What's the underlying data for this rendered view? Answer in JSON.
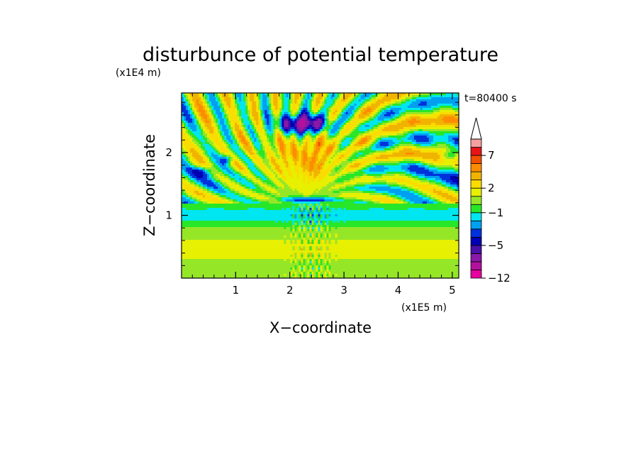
{
  "chart_data": {
    "type": "heatmap",
    "title": "disturbunce of potential temperature",
    "xlabel": "X−coordinate",
    "ylabel": "Z−coordinate",
    "x_scale_label": "(x1E5 m)",
    "y_scale_label": "(x1E4 m)",
    "time_label": "t=80400 s",
    "xlim": [
      0,
      5.12
    ],
    "ylim": [
      0,
      2.95
    ],
    "x_ticks": [
      {
        "value": 1,
        "label": "1"
      },
      {
        "value": 2,
        "label": "2"
      },
      {
        "value": 3,
        "label": "3"
      },
      {
        "value": 4,
        "label": "4"
      },
      {
        "value": 5,
        "label": "5"
      }
    ],
    "y_ticks": [
      {
        "value": 1,
        "label": "1"
      },
      {
        "value": 2,
        "label": "2"
      }
    ],
    "colorbar": {
      "levels": [
        -12,
        -10,
        -8,
        -6,
        -5,
        -4,
        -3,
        -2,
        -1,
        0,
        1,
        2,
        3,
        4,
        5,
        7,
        9,
        11
      ],
      "colors": [
        "#e6009e",
        "#b4109e",
        "#8a18a8",
        "#4b10a8",
        "#0000b4",
        "#0032dc",
        "#00a0f0",
        "#00e6f0",
        "#28e628",
        "#96e628",
        "#e6f000",
        "#fadc00",
        "#f0b400",
        "#ff8c00",
        "#f05000",
        "#e61414",
        "#f5a0a0"
      ],
      "labels": [
        {
          "value": 7,
          "label": "7"
        },
        {
          "value": 2,
          "label": "2"
        },
        {
          "value": -1,
          "label": "−1"
        },
        {
          "value": -5,
          "label": "−5"
        },
        {
          "value": -12,
          "label": "−12"
        }
      ],
      "extend": "max"
    },
    "field_features": [
      {
        "name": "strong cold anomaly",
        "x": 2.25,
        "z": 2.45,
        "value": -11
      },
      {
        "name": "cold core",
        "x": 2.25,
        "z": 2.45,
        "value": -5.5
      },
      {
        "name": "cold lens",
        "x": 2.3,
        "z": 1.25,
        "value": -5
      },
      {
        "name": "warm fan",
        "x": 2.3,
        "z": 1.9,
        "value": 3.5
      },
      {
        "name": "cold band",
        "x": 2.5,
        "z": 1.05,
        "value": -1.5
      },
      {
        "name": "lower warm band",
        "x": 2.5,
        "z": 0.55,
        "value": 2.5
      }
    ]
  }
}
